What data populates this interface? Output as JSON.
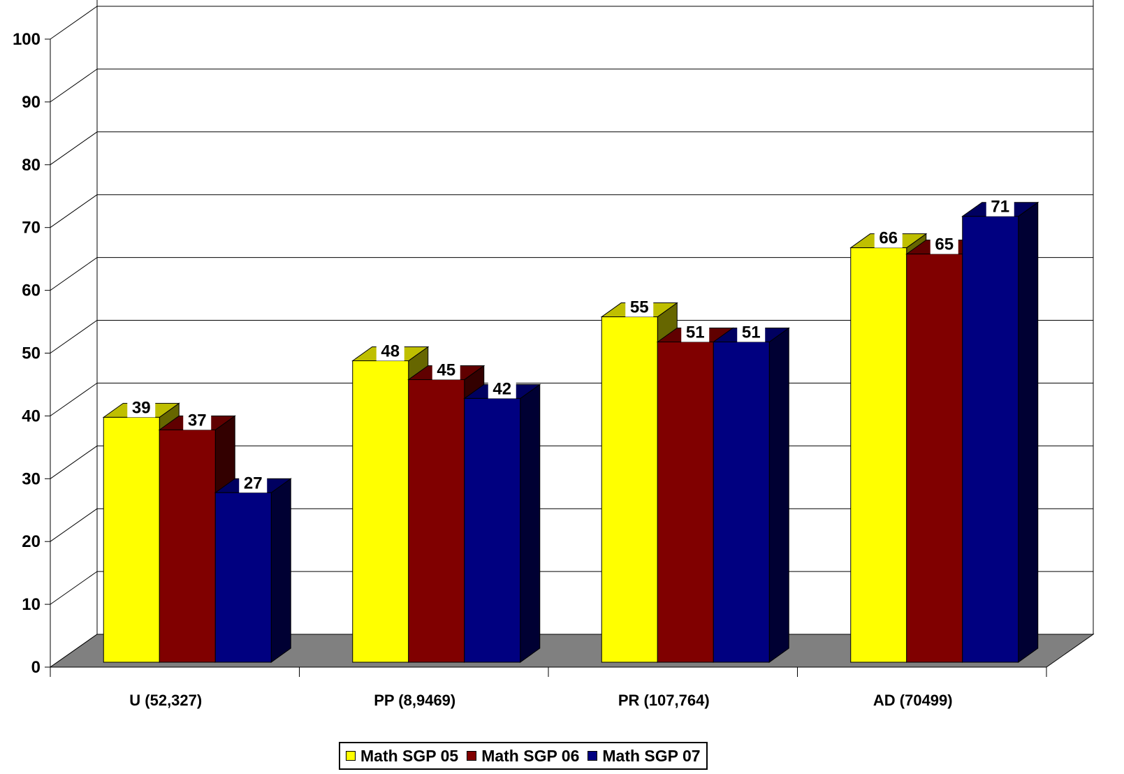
{
  "chart_data": {
    "type": "bar",
    "categories": [
      "U (52,327)",
      "PP (8,9469)",
      "PR (107,764)",
      "AD (70499)"
    ],
    "series": [
      {
        "name": "Math SGP 05",
        "color": "#FFFF00",
        "values": [
          39,
          48,
          55,
          66
        ]
      },
      {
        "name": "Math SGP 06",
        "color": "#800000",
        "values": [
          37,
          45,
          51,
          65
        ]
      },
      {
        "name": "Math SGP 07",
        "color": "#000080",
        "values": [
          27,
          42,
          51,
          71
        ]
      }
    ],
    "yticks": [
      "0",
      "10",
      "20",
      "30",
      "40",
      "50",
      "60",
      "70",
      "80",
      "90",
      "100"
    ],
    "ylim": [
      0,
      100
    ],
    "grid": true,
    "style": "3d-clustered-column",
    "floor_color": "#808080",
    "legend_position": "bottom"
  }
}
